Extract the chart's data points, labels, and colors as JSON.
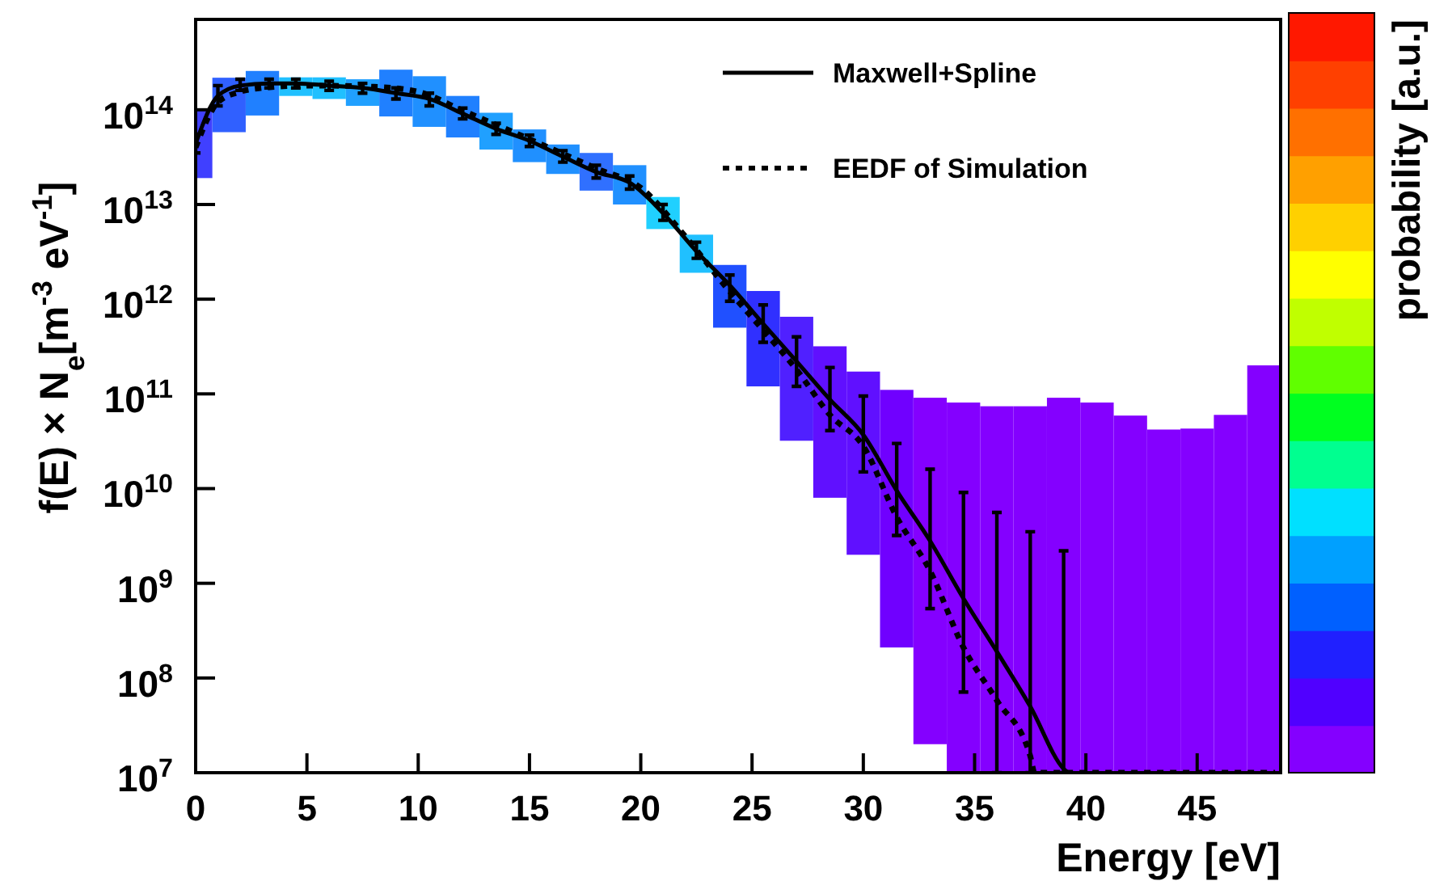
{
  "chart_data": {
    "type": "line",
    "xlabel": "Energy [eV]",
    "ylabel": "f(E) × N$_{e}$[m$^{-3}$ eV$^{-1}$]",
    "clabel": "probability [a.u.]",
    "log": true,
    "legend": "top right",
    "grid": false,
    "xlim": [
      0,
      48.75
    ],
    "xticks": [
      0,
      5,
      10,
      15,
      20,
      25,
      30,
      35,
      40,
      45
    ],
    "ylim": [
      10000000.0,
      900000000000000.0
    ],
    "yticks": [
      {
        "value": 10000000.0,
        "label": "10$^{7}$"
      },
      {
        "value": 100000000.0,
        "label": "10$^{8}$"
      },
      {
        "value": 1000000000.0,
        "label": "10$^{9}$"
      },
      {
        "value": 10000000000.0,
        "label": "10$^{10}$"
      },
      {
        "value": 100000000000.0,
        "label": "10$^{11}$"
      },
      {
        "value": 1000000000000.0,
        "label": "10$^{12}$"
      },
      {
        "value": 10000000000000.0,
        "label": "10$^{13}$"
      },
      {
        "value": 100000000000000.0,
        "label": "10$^{14}$"
      }
    ],
    "series": [
      {
        "type": "bar",
        "x": [
          0,
          1.5,
          3,
          4.5,
          6,
          7.5,
          9,
          10.5,
          12,
          13.5,
          15,
          16.5,
          18,
          19.5,
          21,
          22.5,
          24,
          25.5,
          27,
          28.5,
          30,
          31.5,
          33,
          34.5,
          36,
          37.5,
          39,
          40.5,
          42,
          43.5,
          45,
          46.5,
          48
        ],
        "base": [
          19000000000000.0,
          58000000000000.0,
          87000000000000.0,
          140000000000000.0,
          130000000000000.0,
          110000000000000.0,
          85000000000000.0,
          66000000000000.0,
          51000000000000.0,
          38000000000000.0,
          28000000000000.0,
          21000000000000.0,
          14000000000000.0,
          10000000000000.0,
          5500000000000.0,
          1900000000000.0,
          500000000000.0,
          120000000000.0,
          32000000000.0,
          8000000000.0,
          2000000000.0,
          210000000.0,
          20000000.0,
          10000000.0,
          10000000.0,
          10000000.0,
          10000000.0,
          10000000.0,
          10000000.0,
          10000000.0,
          10000000.0,
          10000000.0,
          10000000.0
        ],
        "values": [
          79000000000000.0,
          160000000000000.0,
          170000000000000.0,
          80000000000000.0,
          90000000000000.0,
          100000000000000.0,
          180000000000000.0,
          160000000000000.0,
          89000000000000.0,
          55000000000000.0,
          34000000000000.0,
          22000000000000.0,
          21000000000000.0,
          16000000000000.0,
          6500000000000.0,
          2900000000000.0,
          1800000000000.0,
          1100000000000.0,
          620000000000.0,
          310000000000.0,
          170000000000.0,
          110000000000.0,
          91000000000.0,
          81000000000.0,
          74000000000.0,
          74000000000.0,
          91000000000.0,
          81000000000.0,
          59000000000.0,
          42000000000.0,
          43000000000.0,
          60000000000.0,
          200000000000.0
        ],
        "colors": [
          "#4040ff",
          "#3060ff",
          "#2080ff",
          "#20c0ff",
          "#20c0ff",
          "#20a0ff",
          "#2080ff",
          "#2090ff",
          "#2080ff",
          "#20a0ff",
          "#2090ff",
          "#2090ff",
          "#3070ff",
          "#2090ff",
          "#20d0ff",
          "#20c0ff",
          "#2050ff",
          "#3030ff",
          "#5020ff",
          "#6010ff",
          "#6010ff",
          "#7000ff",
          "#8400ff",
          "#8400ff",
          "#8400ff",
          "#8400ff",
          "#8400ff",
          "#8400ff",
          "#8400ff",
          "#8400ff",
          "#8400ff",
          "#8400ff",
          "#8400ff"
        ]
      },
      {
        "name": "Maxwell+Spline",
        "color": "#000000",
        "line_style": "solid",
        "x": [
          0,
          1,
          2,
          3.3,
          4.5,
          6,
          7.5,
          9,
          10.5,
          12,
          13.5,
          15,
          16.5,
          18,
          19.5,
          21,
          22.5,
          24,
          25.5,
          27,
          28.5,
          30,
          31.5,
          33,
          34.5,
          36,
          37.5,
          39,
          39.2
        ],
        "values": [
          44000000000000.0,
          140000000000000.0,
          180000000000000.0,
          190000000000000.0,
          190000000000000.0,
          180000000000000.0,
          170000000000000.0,
          150000000000000.0,
          130000000000000.0,
          91000000000000.0,
          63000000000000.0,
          47000000000000.0,
          32000000000000.0,
          22000000000000.0,
          17000000000000.0,
          8100000000000.0,
          3200000000000.0,
          1400000000000.0,
          550000000000.0,
          220000000000.0,
          87000000000.0,
          37000000000.0,
          9500000000.0,
          2800000000.0,
          690000000.0,
          190000000.0,
          50000000.0,
          11000000.0,
          10000000.0
        ],
        "errors": [
          [
            35000000000000.0,
            55000000000000.0
          ],
          [
            110000000000000.0,
            180000000000000.0
          ],
          [
            160000000000000.0,
            210000000000000.0
          ],
          [
            170000000000000.0,
            210000000000000.0
          ],
          [
            170000000000000.0,
            210000000000000.0
          ],
          [
            160000000000000.0,
            200000000000000.0
          ],
          [
            150000000000000.0,
            190000000000000.0
          ],
          [
            130000000000000.0,
            170000000000000.0
          ],
          [
            110000000000000.0,
            150000000000000.0
          ],
          [
            80000000000000.0,
            104000000000000.0
          ],
          [
            55000000000000.0,
            72000000000000.0
          ],
          [
            41000000000000.0,
            54000000000000.0
          ],
          [
            28000000000000.0,
            37000000000000.0
          ],
          [
            19000000000000.0,
            26000000000000.0
          ],
          [
            14500000000000.0,
            20000000000000.0
          ],
          [
            6800000000000.0,
            10000000000000.0
          ],
          [
            2700000000000.0,
            4000000000000.0
          ],
          [
            950000000000.0,
            1800000000000.0
          ],
          [
            350000000000.0,
            870000000000.0
          ],
          [
            120000000000.0,
            400000000000.0
          ],
          [
            41000000000.0,
            190000000000.0
          ],
          [
            15000000000.0,
            95000000000.0
          ],
          [
            3200000000.0,
            30000000000.0
          ],
          [
            540000000.0,
            16000000000.0
          ],
          [
            71000000.0,
            9100000000.0
          ],
          [
            10000000.0,
            5600000000.0
          ],
          [
            10000000.0,
            3500000000.0
          ],
          [
            10000000.0,
            2200000000.0
          ],
          null
        ]
      },
      {
        "name": "EEDF of Simulation",
        "color": "#000000",
        "line_style": "dotted",
        "x": [
          0,
          1,
          2,
          3,
          5,
          8,
          10,
          12,
          15,
          18,
          20,
          22,
          24,
          25.5,
          27,
          28.5,
          30,
          31.5,
          33,
          34.5,
          36,
          37.5,
          37.7,
          48.5
        ],
        "values": [
          40000000000000.0,
          120000000000000.0,
          155000000000000.0,
          170000000000000.0,
          180000000000000.0,
          175000000000000.0,
          155000000000000.0,
          98000000000000.0,
          49000000000000.0,
          24000000000000.0,
          15000000000000.0,
          4600000000000.0,
          1200000000000.0,
          470000000000.0,
          180000000000.0,
          60000000000.0,
          28000000000.0,
          5000000000.0,
          1350000000.0,
          210000000.0,
          58000000.0,
          15000000.0,
          10000000.0,
          10000000.0
        ]
      }
    ]
  }
}
